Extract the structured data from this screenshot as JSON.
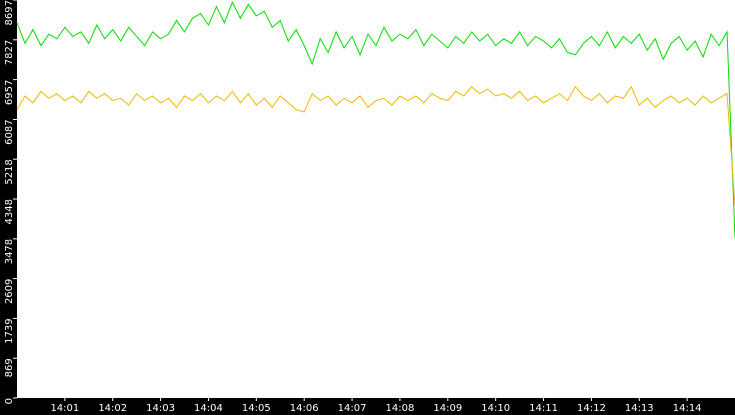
{
  "chart_data": {
    "type": "line",
    "x": [
      0,
      10,
      20,
      30,
      40,
      50,
      60,
      70,
      80,
      90,
      100,
      110,
      120,
      130,
      140,
      150,
      160,
      170,
      180,
      190,
      200,
      210,
      220,
      230,
      240,
      250,
      260,
      270,
      280,
      290,
      300,
      310,
      320,
      330,
      340,
      350,
      360,
      370,
      380,
      390,
      400,
      410,
      420,
      430,
      440,
      450,
      460,
      470,
      480,
      490,
      500,
      510,
      520,
      530,
      540,
      550,
      560,
      570,
      580,
      590,
      600,
      610,
      620,
      630,
      640,
      650,
      660,
      670,
      680,
      690,
      700,
      710,
      720,
      730,
      740,
      750,
      760,
      770,
      780,
      790,
      800,
      810,
      820,
      830,
      840,
      850,
      860,
      870,
      880,
      890,
      900
    ],
    "series": [
      {
        "color": "#00dd00",
        "values": [
          8200,
          7750,
          8050,
          7700,
          7950,
          7850,
          8100,
          7900,
          8000,
          7750,
          8150,
          7850,
          8050,
          7800,
          8100,
          7900,
          7700,
          8000,
          7850,
          7950,
          8250,
          8000,
          8300,
          8400,
          8150,
          8550,
          8200,
          8650,
          8300,
          8600,
          8350,
          8450,
          8100,
          8250,
          7800,
          8050,
          7700,
          7300,
          7850,
          7550,
          8000,
          7650,
          7900,
          7500,
          7950,
          7700,
          8100,
          7800,
          7950,
          7850,
          8050,
          7700,
          7950,
          7800,
          7650,
          7900,
          7750,
          8000,
          7800,
          7950,
          7700,
          7850,
          7750,
          8000,
          7700,
          7900,
          7800,
          7650,
          7850,
          7550,
          7500,
          7750,
          7900,
          7700,
          8000,
          7650,
          7900,
          7750,
          7950,
          7600,
          7850,
          7400,
          7750,
          7900,
          7600,
          7800,
          7450,
          7950,
          7700,
          8000,
          3500
        ]
      },
      {
        "color": "#f0b800",
        "values": [
          6300,
          6600,
          6450,
          6700,
          6550,
          6650,
          6500,
          6600,
          6450,
          6700,
          6550,
          6650,
          6500,
          6550,
          6400,
          6650,
          6500,
          6600,
          6450,
          6550,
          6350,
          6600,
          6500,
          6650,
          6450,
          6600,
          6500,
          6700,
          6450,
          6650,
          6400,
          6550,
          6350,
          6600,
          6450,
          6300,
          6250,
          6650,
          6500,
          6600,
          6400,
          6550,
          6450,
          6600,
          6350,
          6500,
          6550,
          6400,
          6600,
          6500,
          6600,
          6450,
          6650,
          6550,
          6500,
          6700,
          6600,
          6800,
          6650,
          6750,
          6600,
          6650,
          6550,
          6700,
          6500,
          6600,
          6450,
          6550,
          6650,
          6500,
          6800,
          6600,
          6500,
          6650,
          6450,
          6600,
          6550,
          6800,
          6400,
          6550,
          6350,
          6500,
          6600,
          6450,
          6550,
          6400,
          6600,
          6450,
          6550,
          6650,
          4200
        ]
      }
    ],
    "xlim": [
      0,
      900
    ],
    "xticks": [
      {
        "value": 60,
        "label": "14:01"
      },
      {
        "value": 120,
        "label": "14:02"
      },
      {
        "value": 180,
        "label": "14:03"
      },
      {
        "value": 240,
        "label": "14:04"
      },
      {
        "value": 300,
        "label": "14:05"
      },
      {
        "value": 360,
        "label": "14:06"
      },
      {
        "value": 420,
        "label": "14:07"
      },
      {
        "value": 480,
        "label": "14:08"
      },
      {
        "value": 540,
        "label": "14:09"
      },
      {
        "value": 600,
        "label": "14:10"
      },
      {
        "value": 660,
        "label": "14:11"
      },
      {
        "value": 720,
        "label": "14:12"
      },
      {
        "value": 780,
        "label": "14:13"
      },
      {
        "value": 840,
        "label": "14:14"
      }
    ],
    "ylim": [
      0,
      8697
    ],
    "yticks": [
      0,
      869,
      1739,
      2609,
      3478,
      4348,
      5218,
      6087,
      6957,
      7827,
      8697
    ]
  }
}
